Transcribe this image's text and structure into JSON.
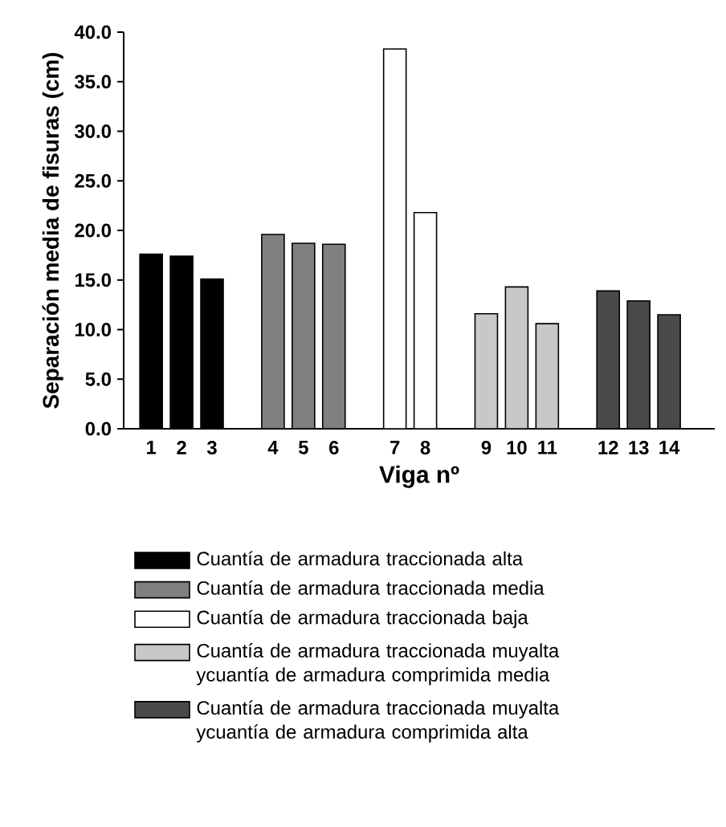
{
  "chart_data": {
    "type": "bar",
    "xlabel": "Viga nº",
    "ylabel": "Separación media de fisuras (cm)",
    "categories": [
      "1",
      "2",
      "3",
      null,
      "4",
      "5",
      "6",
      null,
      "7",
      "8",
      null,
      "9",
      "10",
      "11",
      null,
      "12",
      "13",
      "14"
    ],
    "series": [
      {
        "name": "Cuantía de armadura traccionada alta",
        "color": "#000000",
        "values": [
          17.6,
          17.4,
          15.1,
          null,
          null,
          null,
          null,
          null,
          null,
          null,
          null,
          null,
          null,
          null,
          null,
          null,
          null,
          null
        ]
      },
      {
        "name": "Cuantía de armadura traccionada media",
        "color": "#808080",
        "values": [
          null,
          null,
          null,
          null,
          19.6,
          18.7,
          18.6,
          null,
          null,
          null,
          null,
          null,
          null,
          null,
          null,
          null,
          null,
          null
        ]
      },
      {
        "name": "Cuantía de armadura traccionada baja",
        "color": "#ffffff",
        "values": [
          null,
          null,
          null,
          null,
          null,
          null,
          null,
          null,
          38.3,
          21.8,
          null,
          null,
          null,
          null,
          null,
          null,
          null,
          null
        ]
      },
      {
        "name": "Cuantía de armadura traccionada muyalta ycuantía de armadura comprimida media",
        "color": "#c8c8c8",
        "values": [
          null,
          null,
          null,
          null,
          null,
          null,
          null,
          null,
          null,
          null,
          null,
          11.6,
          14.3,
          10.6,
          null,
          null,
          null,
          null
        ]
      },
      {
        "name": "Cuantía de armadura traccionada muyalta ycuantía de armadura comprimida alta",
        "color": "#4a4a4a",
        "values": [
          null,
          null,
          null,
          null,
          null,
          null,
          null,
          null,
          null,
          null,
          null,
          null,
          null,
          null,
          null,
          13.9,
          12.9,
          11.5
        ]
      }
    ],
    "ylim": [
      0,
      40
    ],
    "yticks": [
      {
        "value": 0,
        "label": "0.0"
      },
      {
        "value": 5,
        "label": "5.0"
      },
      {
        "value": 10,
        "label": "10.0"
      },
      {
        "value": 15,
        "label": "15.0"
      },
      {
        "value": 20,
        "label": "20.0"
      },
      {
        "value": 25,
        "label": "25.0"
      },
      {
        "value": 30,
        "label": "30.0"
      },
      {
        "value": 35,
        "label": "35.0"
      },
      {
        "value": 40,
        "label": "40.0"
      }
    ],
    "legend": "bottom"
  }
}
